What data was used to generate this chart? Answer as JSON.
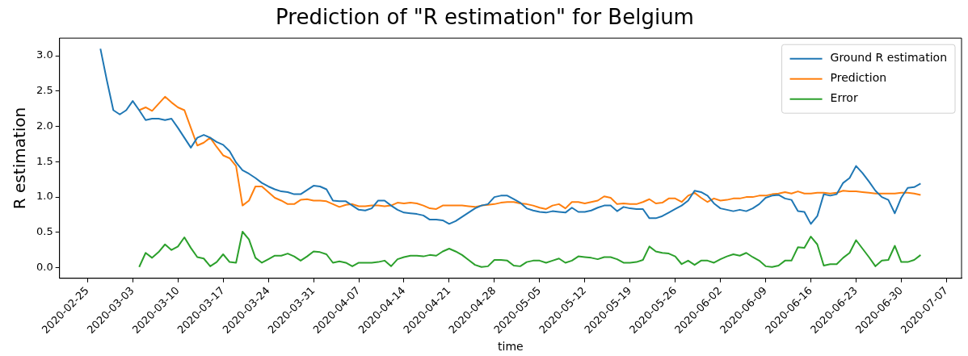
{
  "chart_data": {
    "type": "line",
    "title": "Prediction of \"R estimation\" for Belgium",
    "xlabel": "time",
    "ylabel": "R estimation",
    "x": [
      "2020-02-27",
      "2020-02-28",
      "2020-02-29",
      "2020-03-01",
      "2020-03-02",
      "2020-03-03",
      "2020-03-04",
      "2020-03-05",
      "2020-03-06",
      "2020-03-07",
      "2020-03-08",
      "2020-03-09",
      "2020-03-10",
      "2020-03-11",
      "2020-03-12",
      "2020-03-13",
      "2020-03-14",
      "2020-03-15",
      "2020-03-16",
      "2020-03-17",
      "2020-03-18",
      "2020-03-19",
      "2020-03-20",
      "2020-03-21",
      "2020-03-22",
      "2020-03-23",
      "2020-03-24",
      "2020-03-25",
      "2020-03-26",
      "2020-03-27",
      "2020-03-28",
      "2020-03-29",
      "2020-03-30",
      "2020-03-31",
      "2020-04-01",
      "2020-04-02",
      "2020-04-03",
      "2020-04-04",
      "2020-04-05",
      "2020-04-06",
      "2020-04-07",
      "2020-04-08",
      "2020-04-09",
      "2020-04-10",
      "2020-04-11",
      "2020-04-12",
      "2020-04-13",
      "2020-04-14",
      "2020-04-15",
      "2020-04-16",
      "2020-04-17",
      "2020-04-18",
      "2020-04-19",
      "2020-04-20",
      "2020-04-21",
      "2020-04-22",
      "2020-04-23",
      "2020-04-24",
      "2020-04-25",
      "2020-04-26",
      "2020-04-27",
      "2020-04-28",
      "2020-04-29",
      "2020-04-30",
      "2020-05-01",
      "2020-05-02",
      "2020-05-03",
      "2020-05-04",
      "2020-05-05",
      "2020-05-06",
      "2020-05-07",
      "2020-05-08",
      "2020-05-09",
      "2020-05-10",
      "2020-05-11",
      "2020-05-12",
      "2020-05-13",
      "2020-05-14",
      "2020-05-15",
      "2020-05-16",
      "2020-05-17",
      "2020-05-18",
      "2020-05-19",
      "2020-05-20",
      "2020-05-21",
      "2020-05-22",
      "2020-05-23",
      "2020-05-24",
      "2020-05-25",
      "2020-05-26",
      "2020-05-27",
      "2020-05-28",
      "2020-05-29",
      "2020-05-30",
      "2020-05-31",
      "2020-06-01",
      "2020-06-02",
      "2020-06-03",
      "2020-06-04",
      "2020-06-05",
      "2020-06-06",
      "2020-06-07",
      "2020-06-08",
      "2020-06-09",
      "2020-06-10",
      "2020-06-11",
      "2020-06-12",
      "2020-06-13",
      "2020-06-14",
      "2020-06-15",
      "2020-06-16",
      "2020-06-17",
      "2020-06-18",
      "2020-06-19",
      "2020-06-20",
      "2020-06-21",
      "2020-06-22",
      "2020-06-23",
      "2020-06-24",
      "2020-06-25",
      "2020-06-26",
      "2020-06-27",
      "2020-06-28",
      "2020-06-29",
      "2020-06-30",
      "2020-07-01",
      "2020-07-02",
      "2020-07-03"
    ],
    "series": [
      {
        "name": "Ground R estimation",
        "color": "#1f77b4",
        "values": [
          3.1,
          2.65,
          2.23,
          2.17,
          2.23,
          2.36,
          2.23,
          2.09,
          2.11,
          2.11,
          2.09,
          2.11,
          1.98,
          1.84,
          1.7,
          1.84,
          1.88,
          1.84,
          1.78,
          1.74,
          1.65,
          1.49,
          1.38,
          1.33,
          1.27,
          1.2,
          1.15,
          1.11,
          1.08,
          1.07,
          1.04,
          1.04,
          1.1,
          1.16,
          1.15,
          1.11,
          0.95,
          0.94,
          0.94,
          0.88,
          0.82,
          0.81,
          0.84,
          0.95,
          0.95,
          0.88,
          0.82,
          0.78,
          0.77,
          0.76,
          0.74,
          0.68,
          0.68,
          0.67,
          0.62,
          0.66,
          0.72,
          0.78,
          0.84,
          0.88,
          0.9,
          1.0,
          1.02,
          1.02,
          0.97,
          0.92,
          0.84,
          0.81,
          0.79,
          0.78,
          0.8,
          0.79,
          0.78,
          0.85,
          0.79,
          0.79,
          0.81,
          0.85,
          0.88,
          0.88,
          0.8,
          0.86,
          0.84,
          0.83,
          0.83,
          0.7,
          0.7,
          0.73,
          0.78,
          0.83,
          0.88,
          0.95,
          1.09,
          1.07,
          1.02,
          0.91,
          0.84,
          0.82,
          0.8,
          0.82,
          0.8,
          0.84,
          0.9,
          0.99,
          1.02,
          1.03,
          0.98,
          0.96,
          0.8,
          0.79,
          0.62,
          0.73,
          1.04,
          1.02,
          1.04,
          1.2,
          1.27,
          1.44,
          1.34,
          1.22,
          1.09,
          1.0,
          0.96,
          0.77,
          0.99,
          1.13,
          1.14,
          1.19
        ]
      },
      {
        "name": "Prediction",
        "color": "#ff7f0e",
        "values": [
          null,
          null,
          null,
          null,
          null,
          null,
          2.23,
          2.27,
          2.22,
          2.32,
          2.42,
          2.34,
          2.27,
          2.23,
          1.98,
          1.73,
          1.77,
          1.84,
          1.71,
          1.59,
          1.55,
          1.44,
          0.88,
          0.95,
          1.15,
          1.15,
          1.07,
          0.99,
          0.95,
          0.9,
          0.9,
          0.96,
          0.97,
          0.95,
          0.95,
          0.94,
          0.9,
          0.86,
          0.89,
          0.9,
          0.87,
          0.87,
          0.88,
          0.88,
          0.87,
          0.88,
          0.92,
          0.91,
          0.92,
          0.91,
          0.88,
          0.84,
          0.83,
          0.88,
          0.88,
          0.88,
          0.88,
          0.87,
          0.86,
          0.88,
          0.89,
          0.9,
          0.92,
          0.93,
          0.93,
          0.91,
          0.9,
          0.88,
          0.85,
          0.83,
          0.88,
          0.9,
          0.84,
          0.93,
          0.93,
          0.91,
          0.93,
          0.95,
          1.01,
          0.99,
          0.9,
          0.91,
          0.9,
          0.9,
          0.93,
          0.97,
          0.91,
          0.92,
          0.98,
          0.98,
          0.93,
          1.02,
          1.06,
          0.99,
          0.93,
          0.98,
          0.95,
          0.96,
          0.98,
          0.98,
          1.0,
          1.0,
          1.02,
          1.02,
          1.04,
          1.05,
          1.07,
          1.05,
          1.08,
          1.05,
          1.05,
          1.06,
          1.06,
          1.05,
          1.06,
          1.09,
          1.08,
          1.08,
          1.07,
          1.06,
          1.05,
          1.05,
          1.05,
          1.05,
          1.06,
          1.06,
          1.05,
          1.03
        ]
      },
      {
        "name": "Error",
        "color": "#2ca02c",
        "values": [
          null,
          null,
          null,
          null,
          null,
          null,
          0.01,
          0.21,
          0.14,
          0.22,
          0.33,
          0.25,
          0.3,
          0.43,
          0.28,
          0.15,
          0.13,
          0.02,
          0.08,
          0.19,
          0.08,
          0.07,
          0.51,
          0.4,
          0.14,
          0.07,
          0.12,
          0.17,
          0.17,
          0.2,
          0.16,
          0.1,
          0.16,
          0.23,
          0.22,
          0.19,
          0.07,
          0.09,
          0.07,
          0.02,
          0.07,
          0.07,
          0.07,
          0.08,
          0.1,
          0.02,
          0.12,
          0.15,
          0.17,
          0.17,
          0.16,
          0.18,
          0.17,
          0.23,
          0.27,
          0.23,
          0.18,
          0.11,
          0.04,
          0.01,
          0.02,
          0.11,
          0.11,
          0.1,
          0.03,
          0.02,
          0.08,
          0.1,
          0.1,
          0.07,
          0.1,
          0.13,
          0.07,
          0.1,
          0.16,
          0.15,
          0.14,
          0.12,
          0.15,
          0.15,
          0.12,
          0.07,
          0.07,
          0.08,
          0.11,
          0.3,
          0.23,
          0.21,
          0.2,
          0.16,
          0.05,
          0.1,
          0.04,
          0.1,
          0.1,
          0.07,
          0.12,
          0.16,
          0.19,
          0.17,
          0.21,
          0.15,
          0.1,
          0.02,
          0.01,
          0.03,
          0.1,
          0.1,
          0.29,
          0.28,
          0.44,
          0.33,
          0.03,
          0.05,
          0.05,
          0.14,
          0.21,
          0.39,
          0.27,
          0.15,
          0.02,
          0.1,
          0.11,
          0.31,
          0.08,
          0.08,
          0.11,
          0.18
        ]
      }
    ],
    "xlim": [
      "2020-02-20T16:00",
      "2020-07-09T08:00"
    ],
    "xticks": [
      "2020-02-25",
      "2020-03-03",
      "2020-03-10",
      "2020-03-17",
      "2020-03-24",
      "2020-03-31",
      "2020-04-07",
      "2020-04-14",
      "2020-04-21",
      "2020-04-28",
      "2020-05-05",
      "2020-05-12",
      "2020-05-19",
      "2020-05-26",
      "2020-06-02",
      "2020-06-09",
      "2020-06-16",
      "2020-06-23",
      "2020-06-30",
      "2020-07-07"
    ],
    "ylim": [
      -0.15,
      3.25
    ],
    "yticks": [
      {
        "value": 0,
        "label": "0.0"
      },
      0.5,
      {
        "value": 1,
        "label": "1.0"
      },
      1.5,
      {
        "value": 2,
        "label": "2.0"
      },
      2.5,
      {
        "value": 3,
        "label": "3.0"
      }
    ],
    "legend": "top right",
    "grid": false
  }
}
